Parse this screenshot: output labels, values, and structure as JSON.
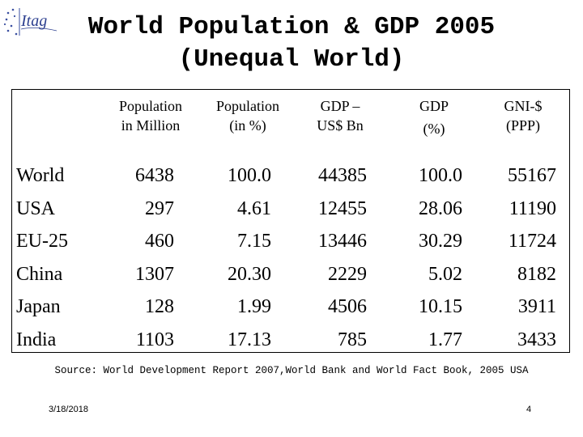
{
  "logo": {
    "text": "Itag"
  },
  "title": {
    "line1": "World Population & GDP 2005",
    "line2": "(Unequal World)"
  },
  "table": {
    "headers": [
      {
        "line1": "Population",
        "line2": "in Million"
      },
      {
        "line1": "Population",
        "line2": "(in %)"
      },
      {
        "line1": "GDP –",
        "line2": "US$ Bn"
      },
      {
        "line1": "GDP",
        "line2": "(%)"
      },
      {
        "line1": "GNI-$",
        "line2": "(PPP)"
      }
    ],
    "rows": [
      {
        "label": "World",
        "values": [
          "6438",
          "100.0",
          "44385",
          "100.0",
          "55167"
        ]
      },
      {
        "label": "USA",
        "values": [
          "297",
          "4.61",
          "12455",
          "28.06",
          "11190"
        ]
      },
      {
        "label": "EU-25",
        "values": [
          "460",
          "7.15",
          "13446",
          "30.29",
          "11724"
        ]
      },
      {
        "label": "China",
        "values": [
          "1307",
          "20.30",
          "2229",
          "5.02",
          "8182"
        ]
      },
      {
        "label": "Japan",
        "values": [
          "128",
          "1.99",
          "4506",
          "10.15",
          "3911"
        ]
      },
      {
        "label": "India",
        "values": [
          "1103",
          "17.13",
          "785",
          "1.77",
          "3433"
        ]
      }
    ]
  },
  "source": "Source: World Development Report 2007,World Bank and World Fact Book, 2005 USA",
  "footer": {
    "date": "3/18/2018",
    "page": "4"
  }
}
